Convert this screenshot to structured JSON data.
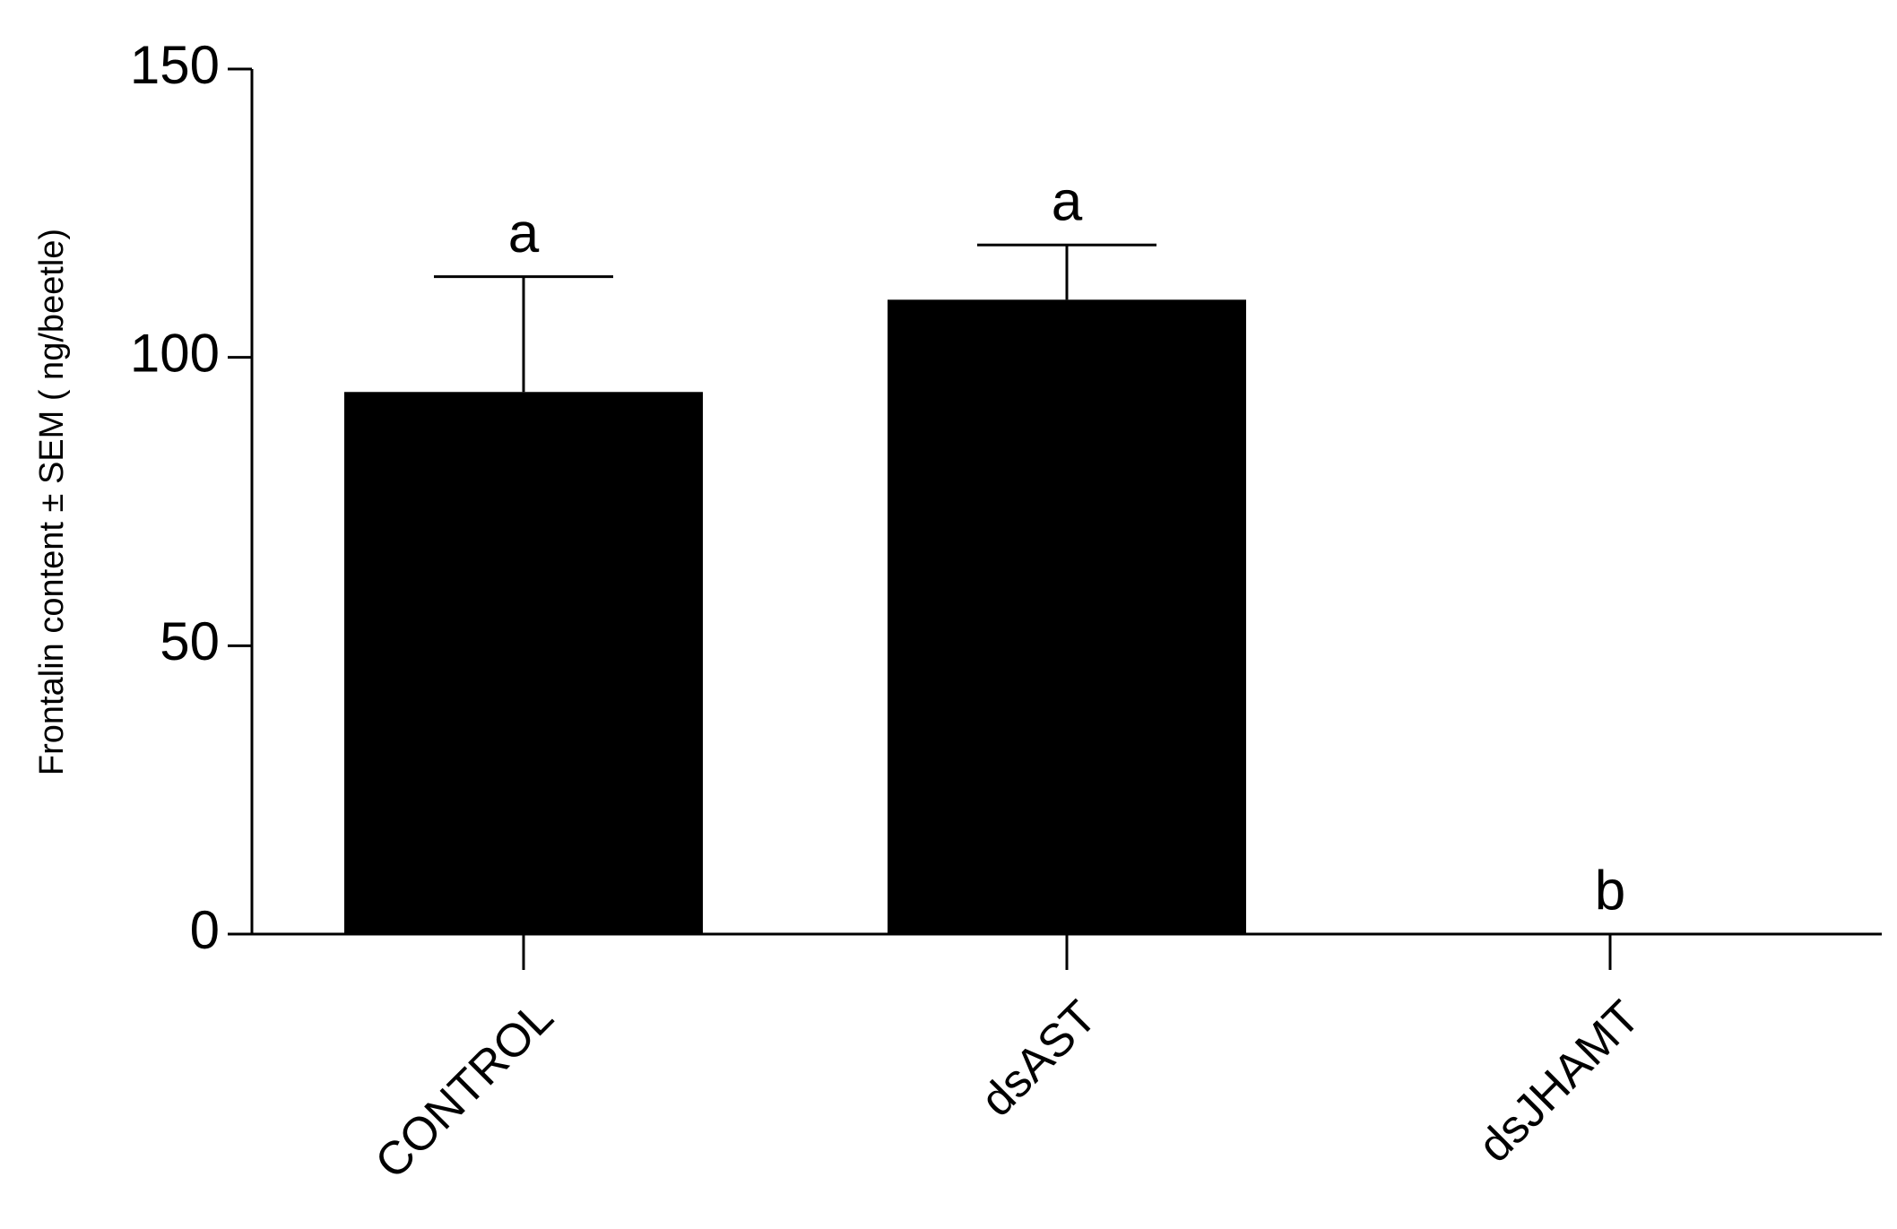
{
  "chart_data": {
    "type": "bar",
    "y_label": "Frontalin content ± SEM ( ng/beetle)",
    "categories": [
      "CONTROL",
      "dsAST",
      "dsJHAMT"
    ],
    "values": [
      94,
      110,
      0
    ],
    "errors": [
      20,
      9.5,
      0
    ],
    "annotations": [
      "a",
      "a",
      "b"
    ],
    "color": "#000000",
    "ylim": [
      0,
      150
    ],
    "yticks": [
      0,
      50,
      100,
      150
    ],
    "grid": false
  }
}
